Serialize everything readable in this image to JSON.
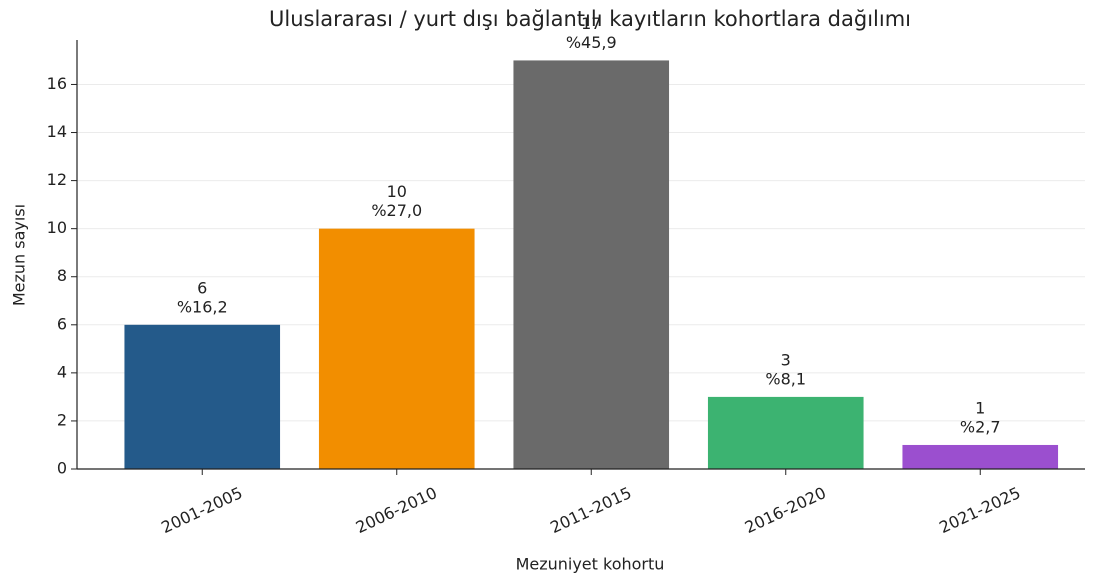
{
  "chart_data": {
    "type": "bar",
    "title": "Uluslararası / yurt dışı bağlantılı kayıtların kohortlara dağılımı",
    "x_label": "Mezuniyet kohortu",
    "y_label": "Mezun sayısı",
    "categories": [
      "2001-2005",
      "2006-2010",
      "2011-2015",
      "2016-2020",
      "2021-2025"
    ],
    "values": [
      6,
      10,
      17,
      3,
      1
    ],
    "share_labels": [
      "%16,2",
      "%27,0",
      "%45,9",
      "%8,1",
      "%2,7"
    ],
    "colors": [
      "#245a8a",
      "#f28e00",
      "#6a6a6a",
      "#3cb371",
      "#9b4fcf"
    ],
    "ylim": [
      0,
      17.85
    ],
    "yticks": [
      0,
      2,
      4,
      6,
      8,
      10,
      12,
      14,
      16
    ],
    "grid": true
  }
}
